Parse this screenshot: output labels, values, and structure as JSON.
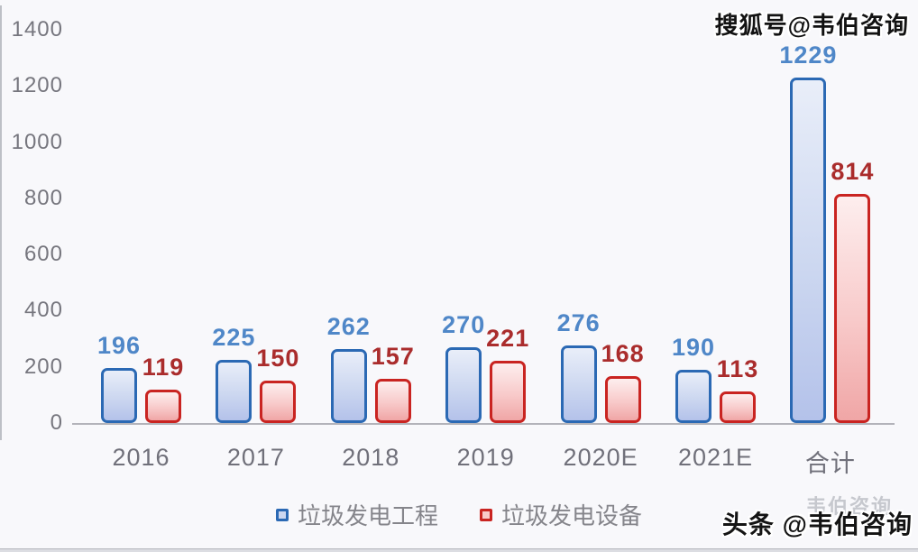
{
  "watermarks": {
    "top_right": "搜狐号@韦伯咨询",
    "bottom_right": "头条 @韦伯咨询",
    "bottom_right_ghost": "韦伯咨询"
  },
  "chart_data": {
    "type": "bar",
    "title": "",
    "xlabel": "",
    "ylabel": "",
    "categories": [
      "2016",
      "2017",
      "2018",
      "2019",
      "2020E",
      "2021E",
      "合计"
    ],
    "series": [
      {
        "name": "垃圾发电工程",
        "values": [
          196,
          225,
          262,
          270,
          276,
          190,
          1229
        ],
        "border_color": "#2b69b4",
        "fill_top": "#e9eef9",
        "fill_mid": "#ccd7f0",
        "fill_bottom": "#b4c2ea",
        "label_color": "#4f87c8"
      },
      {
        "name": "垃圾发电设备",
        "values": [
          119,
          150,
          157,
          221,
          168,
          113,
          814
        ],
        "border_color": "#c92421",
        "fill_top": "#fdeeee",
        "fill_mid": "#f8caca",
        "fill_bottom": "#f0a6a6",
        "label_color": "#aa2c2c"
      }
    ],
    "ylim": [
      0,
      1400
    ],
    "yticks": [
      0,
      200,
      400,
      600,
      800,
      1000,
      1200,
      1400
    ],
    "grid": false,
    "legend_position": "bottom"
  }
}
